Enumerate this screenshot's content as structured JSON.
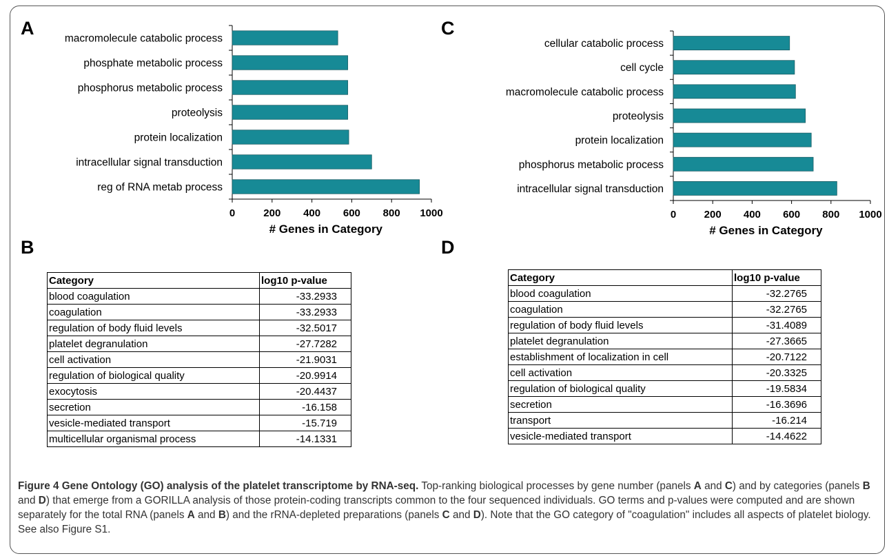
{
  "panels": {
    "a": "A",
    "b": "B",
    "c": "C",
    "d": "D"
  },
  "chart_data": [
    {
      "type": "bar",
      "orientation": "horizontal",
      "categories": [
        "macromolecule catabolic process",
        "phosphate metabolic process",
        "phosphorus metabolic process",
        "proteolysis",
        "protein localization",
        "intracellular signal transduction",
        "reg of RNA metab process"
      ],
      "values": [
        530,
        580,
        580,
        580,
        585,
        700,
        940
      ],
      "xlabel": "# Genes in  Category",
      "xlim": [
        0,
        1000
      ],
      "xticks": [
        "0",
        "200",
        "400",
        "600",
        "800",
        "1000"
      ],
      "bar_color": "#178a96",
      "grid": false
    },
    {
      "type": "bar",
      "orientation": "horizontal",
      "categories": [
        "cellular catabolic process",
        "cell cycle",
        "macromolecule catabolic process",
        "proteolysis",
        "protein localization",
        "phosphorus metabolic process",
        "intracellular signal transduction"
      ],
      "values": [
        590,
        615,
        620,
        670,
        700,
        710,
        830
      ],
      "xlabel": "# Genes in  Category",
      "xlim": [
        0,
        1000
      ],
      "xticks": [
        "0",
        "200",
        "400",
        "600",
        "800",
        "1000"
      ],
      "bar_color": "#178a96",
      "grid": false
    }
  ],
  "table_b": {
    "header": [
      "Category",
      "log10 p-value"
    ],
    "rows": [
      [
        "blood coagulation",
        "-33.2933"
      ],
      [
        "coagulation",
        "-33.2933"
      ],
      [
        "regulation of body fluid levels",
        "-32.5017"
      ],
      [
        "platelet degranulation",
        "-27.7282"
      ],
      [
        "cell activation",
        "-21.9031"
      ],
      [
        "regulation of biological quality",
        "-20.9914"
      ],
      [
        "exocytosis",
        "-20.4437"
      ],
      [
        "secretion",
        "-16.158"
      ],
      [
        "vesicle-mediated transport",
        "-15.719"
      ],
      [
        "multicellular organismal process",
        "-14.1331"
      ]
    ]
  },
  "table_d": {
    "header": [
      "Category",
      "log10 p-value"
    ],
    "rows": [
      [
        "blood coagulation",
        "-32.2765"
      ],
      [
        "coagulation",
        "-32.2765"
      ],
      [
        "regulation of body fluid levels",
        "-31.4089"
      ],
      [
        "platelet degranulation",
        "-27.3665"
      ],
      [
        "establishment of localization in cell",
        "-20.7122"
      ],
      [
        "cell activation",
        "-20.3325"
      ],
      [
        "regulation of biological quality",
        "-19.5834"
      ],
      [
        "secretion",
        "-16.3696"
      ],
      [
        "transport",
        "-16.214"
      ],
      [
        "vesicle-mediated transport",
        "-14.4622"
      ]
    ]
  },
  "caption": {
    "title": "Figure 4 Gene Ontology (GO) analysis of the platelet transcriptome by RNA-seq.",
    "t1": " Top-ranking biological processes by gene number (panels ",
    "A": "A",
    "t2": " and ",
    "C": "C",
    "t3": ") and by categories (panels ",
    "B": "B",
    "t4": " and ",
    "D": "D",
    "t5": ") that emerge from a GORILLA analysis of those protein-coding transcripts common to the four sequenced individuals. GO terms and p-values were computed and are shown separately for the total RNA (panels ",
    "A2": "A",
    "t6": " and ",
    "B2": "B",
    "t7": ") and the rRNA-depleted preparations (panels ",
    "C2": "C",
    "t8": " and ",
    "D2": "D",
    "t9": "). Note that the GO category of \"coagulation\" includes all aspects of platelet biology. See also Figure S1."
  }
}
